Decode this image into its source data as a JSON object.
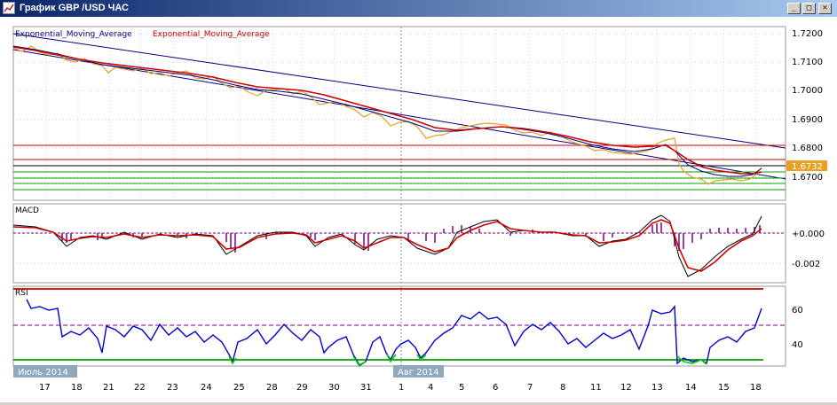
{
  "window": {
    "title": "График GBP /USD  ЧАС",
    "minimize_label": "_",
    "maximize_label": "□",
    "close_label": "✕"
  },
  "colors": {
    "price": "#e8a020",
    "ema_fast": "#000080",
    "ema_slow": "#cc0000",
    "channel": "#000080",
    "resistance": "#cc0000",
    "support": "#00a000",
    "macd_hist": "#800080",
    "rsi": "#0000cc",
    "rsi_oversold_segments": "#00cc00",
    "price_tag_bg": "#e8a020"
  },
  "price_panel": {
    "legend_1": "Exponential_Moving_Average",
    "legend_2": "Exponential_Moving_Average",
    "y_ticks": [
      "1.7200",
      "1.7100",
      "1.7000",
      "1.6900",
      "1.6800",
      "1.6700"
    ],
    "current_price": "1.6732"
  },
  "macd_panel": {
    "label": "MACD",
    "y_ticks": [
      "+0.000",
      "-0.002"
    ]
  },
  "rsi_panel": {
    "label": "RSI",
    "y_ticks": [
      "60",
      "40"
    ]
  },
  "x_axis": {
    "month_1": "Июль 2014",
    "month_2": "Авг 2014",
    "ticks": [
      "17",
      "18",
      "21",
      "22",
      "23",
      "24",
      "25",
      "28",
      "29",
      "30",
      "31",
      "1",
      "4",
      "5",
      "6",
      "7",
      "8",
      "11",
      "12",
      "13",
      "14",
      "15",
      "18"
    ]
  }
}
